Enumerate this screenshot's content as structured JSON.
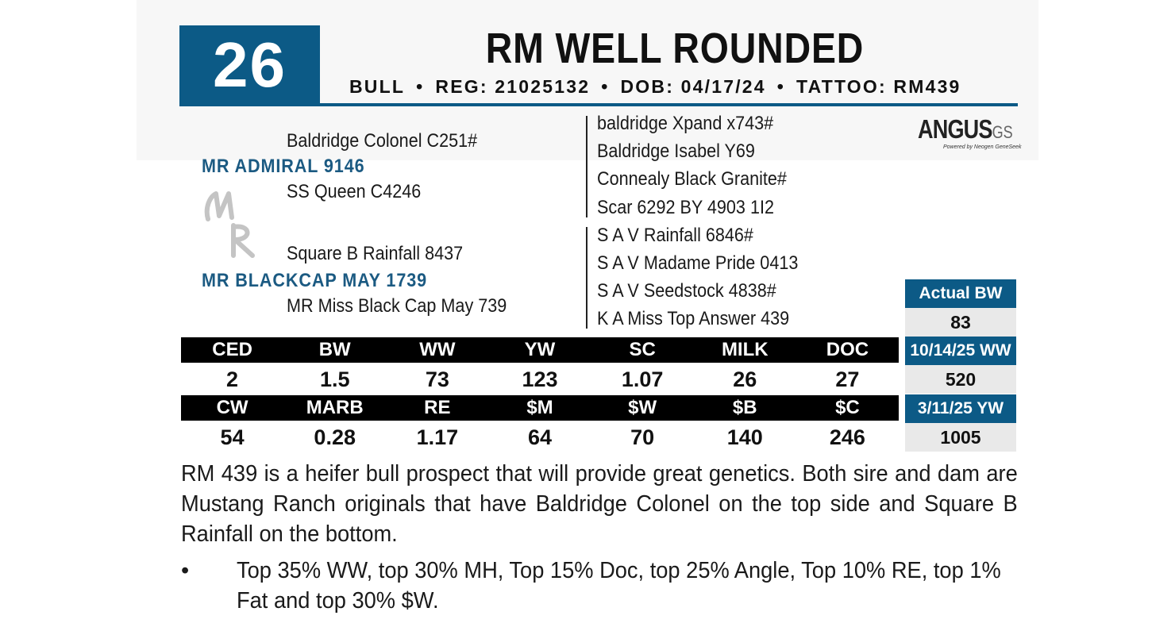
{
  "lot_number": "26",
  "name": "RM WELL ROUNDED",
  "info": {
    "sex": "BULL",
    "reg": "REG: 21025132",
    "dob": "DOB: 04/17/24",
    "tattoo": "TATTOO: RM439",
    "separator": "•"
  },
  "pedigree": {
    "sire": "MR ADMIRAL 9146",
    "sire_sire": "Baldridge Colonel C251#",
    "sire_dam": "SS Queen C4246",
    "dam": "MR BLACKCAP MAY 1739",
    "dam_sire": "Square B Rainfall 8437",
    "dam_dam": "MR Miss Black Cap May 739",
    "sire_side_ancestors": [
      "baldridge Xpand x743#",
      "Baldridge Isabel Y69",
      "Connealy Black Granite#",
      "Scar 6292 BY 4903 1I2"
    ],
    "dam_side_ancestors": [
      "S A V Rainfall 6846#",
      "S A V Madame Pride 0413",
      "S A V Seedstock 4838#",
      "K A Miss Top Answer 439"
    ]
  },
  "logo": {
    "text": "ANGUS",
    "suffix": "GS",
    "tagline": "Powered by Neogen GeneSeek"
  },
  "epd_row1": {
    "headers": [
      "CED",
      "BW",
      "WW",
      "YW",
      "SC",
      "MILK",
      "DOC"
    ],
    "values": [
      "2",
      "1.5",
      "73",
      "123",
      "1.07",
      "26",
      "27"
    ]
  },
  "epd_row2": {
    "headers": [
      "CW",
      "MARB",
      "RE",
      "$M",
      "$W",
      "$B",
      "$C"
    ],
    "values": [
      "54",
      "0.28",
      "1.17",
      "64",
      "70",
      "140",
      "246"
    ]
  },
  "weights": [
    {
      "label": "Actual BW",
      "value": "83"
    },
    {
      "label": "10/14/25 WW",
      "value": "520"
    },
    {
      "label": "3/11/25 YW",
      "value": "1005"
    }
  ],
  "description": "RM 439 is a heifer bull prospect that will provide great genetics. Both sire and dam are Mustang Ranch originals that have Baldridge Colonel on the top side and Square B Rainfall on the bottom.",
  "bullet_mark": "•",
  "bullet": "Top 35% WW, top 30% MH, Top 15% Doc, top 25% Angle, Top 10% RE, top 1% Fat and top 30% $W.",
  "colors": {
    "accent_blue": "#0c5a86",
    "black_band": "#000000",
    "value_bg": "#e9e9e9"
  }
}
